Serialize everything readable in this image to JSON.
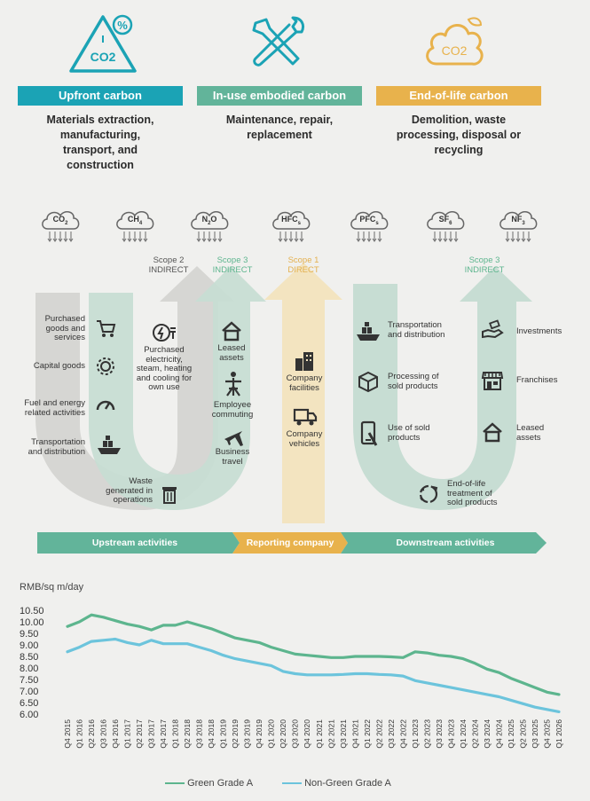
{
  "phases": [
    {
      "title": "Upfront carbon",
      "desc": [
        "Materials extraction,",
        "manufacturing,",
        "transport, and",
        "construction"
      ],
      "color": "#1ba3b5"
    },
    {
      "title": "In-use embodied carbon",
      "desc": [
        "Maintenance, repair,",
        "replacement"
      ],
      "color": "#62b49a"
    },
    {
      "title": "End-of-life carbon",
      "desc": [
        "Demolition, waste",
        "processing, disposal or",
        "recycling"
      ],
      "color": "#e8b24c"
    }
  ],
  "icon_texts": {
    "co2_triangle": "CO2",
    "co2_cloud": "CO2"
  },
  "gases": [
    {
      "main": "CO",
      "sub": "2"
    },
    {
      "main": "CH",
      "sub": "4"
    },
    {
      "main": "N",
      "sub": "2",
      "tail": "O"
    },
    {
      "main": "HFC",
      "sub": "s"
    },
    {
      "main": "PFC",
      "sub": "s"
    },
    {
      "main": "SF",
      "sub": "6"
    },
    {
      "main": "NF",
      "sub": "3"
    }
  ],
  "scopes": {
    "s2": {
      "line1": "Scope 2",
      "line2": "INDIRECT"
    },
    "s3a": {
      "line1": "Scope 3",
      "line2": "INDIRECT"
    },
    "s1": {
      "line1": "Scope 1",
      "line2": "DIRECT"
    },
    "s3b": {
      "line1": "Scope 3",
      "line2": "INDIRECT"
    }
  },
  "upstream": {
    "purchased_goods": [
      "Purchased",
      "goods and",
      "services"
    ],
    "capital_goods": [
      "Capital goods"
    ],
    "fuel_energy": [
      "Fuel and energy",
      "related activities"
    ],
    "transport": [
      "Transportation",
      "and distribution"
    ],
    "waste": [
      "Waste",
      "generated in",
      "operations"
    ],
    "purchased_electricity": [
      "Purchased",
      "electricity,",
      "steam, heating",
      "and cooling for",
      "own use"
    ],
    "leased_assets": [
      "Leased",
      "assets"
    ],
    "employee_commuting": [
      "Employee",
      "commuting"
    ],
    "business_travel": [
      "Business",
      "travel"
    ]
  },
  "company": {
    "facilities": [
      "Company",
      "facilities"
    ],
    "vehicles": [
      "Company",
      "vehicles"
    ]
  },
  "downstream": {
    "transport": [
      "Transportation",
      "and distribution"
    ],
    "processing": [
      "Processing of",
      "sold products"
    ],
    "use": [
      "Use of sold",
      "products"
    ],
    "end_of_life": [
      "End-of-life",
      "treatment of",
      "sold products"
    ],
    "investments": [
      "Investments"
    ],
    "franchises": [
      "Franchises"
    ],
    "leased_assets": [
      "Leased",
      "assets"
    ]
  },
  "band": {
    "upstream": "Upstream activities",
    "reporting": "Reporting company",
    "downstream": "Downstream activities"
  },
  "chart_data": {
    "type": "line",
    "ylabel": "RMB/sq m/day",
    "ylim": [
      6.0,
      10.5
    ],
    "yticks": [
      "10.50",
      "10.00",
      "9.50",
      "9.00",
      "8.50",
      "8.00",
      "7.50",
      "7.00",
      "6.50",
      "6.00"
    ],
    "categories": [
      "Q4 2015",
      "Q1 2016",
      "Q2 2016",
      "Q3 2016",
      "Q4 2016",
      "Q1 2017",
      "Q2 2017",
      "Q3 2017",
      "Q4 2017",
      "Q1 2018",
      "Q2 2018",
      "Q3 2018",
      "Q4 2018",
      "Q1 2019",
      "Q2 2019",
      "Q3 2019",
      "Q4 2019",
      "Q1 2020",
      "Q2 2020",
      "Q3 2020",
      "Q4 2020",
      "Q1 2021",
      "Q2 2021",
      "Q3 2021",
      "Q4 2021",
      "Q1 2022",
      "Q2 2022",
      "Q3 2022",
      "Q4 2022",
      "Q1 2023",
      "Q2 2023",
      "Q3 2023",
      "Q4 2023",
      "Q1 2024",
      "Q2 2024",
      "Q3 2024",
      "Q4 2024",
      "Q1 2025",
      "Q2 2025",
      "Q3 2025",
      "Q4 2025",
      "Q1 2026"
    ],
    "series": [
      {
        "name": "Green Grade A",
        "color": "#5db58e",
        "values": [
          9.8,
          10.0,
          10.3,
          10.2,
          10.05,
          9.9,
          9.8,
          9.65,
          9.85,
          9.85,
          10.0,
          9.85,
          9.7,
          9.5,
          9.3,
          9.2,
          9.1,
          8.9,
          8.75,
          8.6,
          8.55,
          8.5,
          8.45,
          8.45,
          8.5,
          8.5,
          8.5,
          8.48,
          8.45,
          8.7,
          8.65,
          8.55,
          8.5,
          8.4,
          8.2,
          7.95,
          7.8,
          7.55,
          7.35,
          7.15,
          6.95,
          6.85
        ]
      },
      {
        "name": "Non-Green Grade A",
        "color": "#6cc4dc",
        "values": [
          8.7,
          8.9,
          9.15,
          9.2,
          9.25,
          9.1,
          9.0,
          9.2,
          9.05,
          9.05,
          9.05,
          8.9,
          8.75,
          8.55,
          8.4,
          8.3,
          8.2,
          8.1,
          7.85,
          7.75,
          7.7,
          7.7,
          7.7,
          7.72,
          7.75,
          7.75,
          7.72,
          7.7,
          7.65,
          7.45,
          7.35,
          7.25,
          7.15,
          7.05,
          6.95,
          6.85,
          6.75,
          6.6,
          6.45,
          6.3,
          6.2,
          6.1
        ]
      }
    ]
  }
}
